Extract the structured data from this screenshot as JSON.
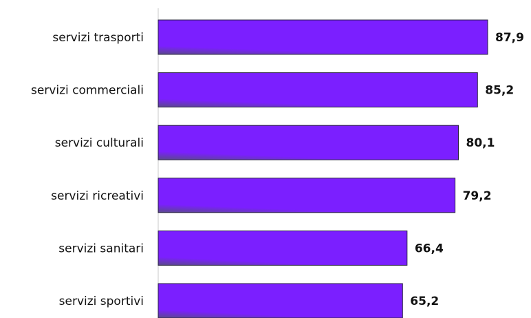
{
  "chart_data": {
    "type": "bar",
    "orientation": "horizontal",
    "categories": [
      "servizi trasporti",
      "servizi commerciali",
      "servizi culturali",
      "servizi ricreativi",
      "servizi sanitari",
      "servizi sportivi"
    ],
    "values": [
      87.9,
      85.2,
      80.1,
      79.2,
      66.4,
      65.2
    ],
    "value_labels": [
      "87,9",
      "85,2",
      "80,1",
      "79,2",
      "66,4",
      "65,2"
    ],
    "xlim": [
      0,
      100
    ],
    "title": "",
    "xlabel": "",
    "ylabel": "",
    "grid": false,
    "legend": "none",
    "bar_color": "#7b1fff",
    "bar_shade_color": "#5a4a8a",
    "axis_color": "#c8c8c8"
  }
}
